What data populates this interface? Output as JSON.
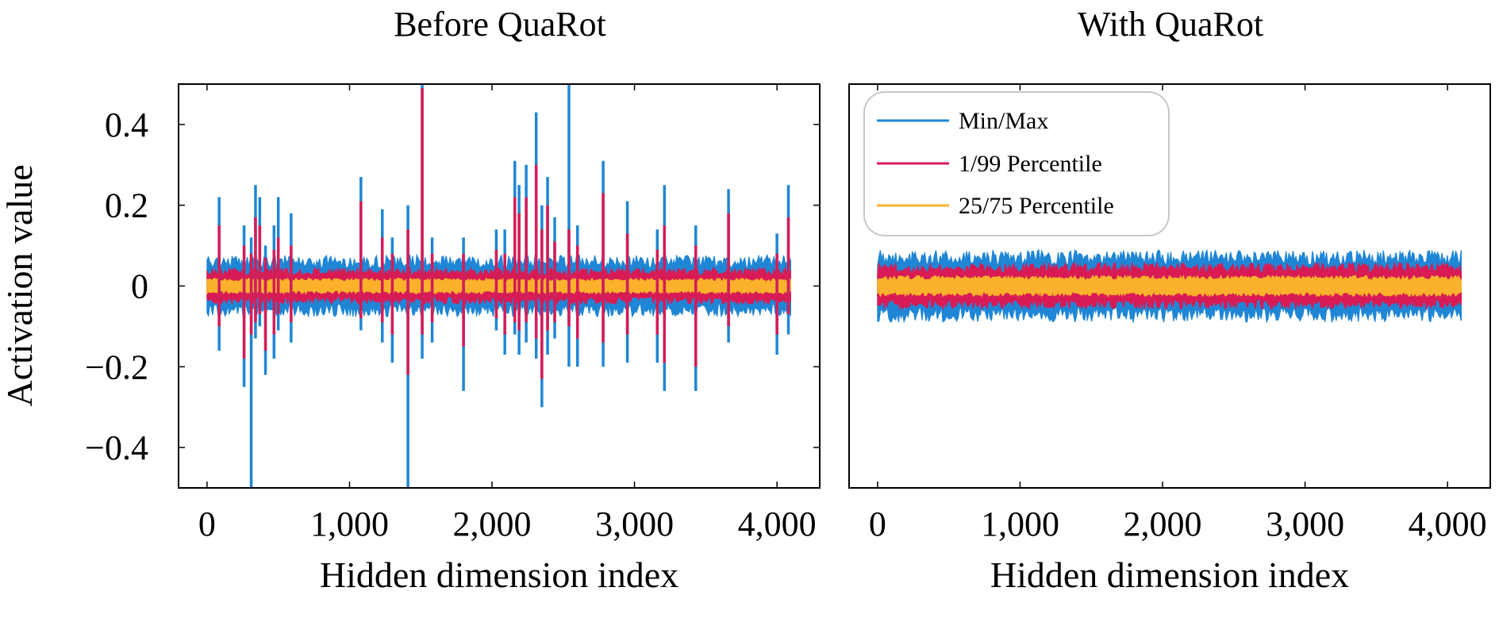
{
  "chart_data": [
    {
      "type": "line",
      "title": "Before QuaRot",
      "xlabel": "Hidden dimension index",
      "ylabel": "Activation value",
      "xlim": [
        -200,
        4300
      ],
      "ylim": [
        -0.5,
        0.5
      ],
      "xticks": [
        0,
        1000,
        2000,
        3000,
        4000
      ],
      "xtick_labels": [
        "0",
        "1,000",
        "2,000",
        "3,000",
        "4,000"
      ],
      "yticks": [
        -0.4,
        -0.2,
        0,
        0.2,
        0.4
      ],
      "ytick_labels": [
        "−0.4",
        "−0.2",
        "0",
        "0.2",
        "0.4"
      ],
      "x_range": [
        0,
        4096
      ],
      "series": [
        {
          "name": "Min/Max",
          "color": "#1f86d6",
          "band": [
            -0.06,
            0.06
          ]
        },
        {
          "name": "1/99 Percentile",
          "color": "#d81b55",
          "band": [
            -0.035,
            0.035
          ]
        },
        {
          "name": "25/75 Percentile",
          "color": "#fbb12b",
          "band": [
            -0.015,
            0.015
          ]
        }
      ],
      "outliers": [
        {
          "x": 85,
          "max": 0.22,
          "min": -0.16,
          "p99": 0.15,
          "p1": -0.1
        },
        {
          "x": 260,
          "max": 0.15,
          "min": -0.25,
          "p99": 0.1,
          "p1": -0.18
        },
        {
          "x": 310,
          "max": 0.12,
          "min": -0.5,
          "p99": 0.08,
          "p1": -0.12
        },
        {
          "x": 340,
          "max": 0.25,
          "min": -0.13,
          "p99": 0.17,
          "p1": -0.09
        },
        {
          "x": 370,
          "max": 0.22,
          "min": -0.1,
          "p99": 0.15,
          "p1": -0.07
        },
        {
          "x": 410,
          "max": 0.1,
          "min": -0.22,
          "p99": 0.07,
          "p1": -0.16
        },
        {
          "x": 470,
          "max": 0.15,
          "min": -0.18,
          "p99": 0.09,
          "p1": -0.12
        },
        {
          "x": 500,
          "max": 0.22,
          "min": -0.11,
          "p99": 0.12,
          "p1": -0.07
        },
        {
          "x": 590,
          "max": 0.18,
          "min": -0.14,
          "p99": 0.1,
          "p1": -0.09
        },
        {
          "x": 1080,
          "max": 0.27,
          "min": -0.11,
          "p99": 0.21,
          "p1": -0.08
        },
        {
          "x": 1230,
          "max": 0.19,
          "min": -0.14,
          "p99": 0.12,
          "p1": -0.09
        },
        {
          "x": 1300,
          "max": 0.12,
          "min": -0.19,
          "p99": 0.08,
          "p1": -0.12
        },
        {
          "x": 1410,
          "max": 0.2,
          "min": -0.5,
          "p99": 0.14,
          "p1": -0.22
        },
        {
          "x": 1510,
          "max": 0.5,
          "min": -0.18,
          "p99": 0.49,
          "p1": -0.12
        },
        {
          "x": 1580,
          "max": 0.12,
          "min": -0.14,
          "p99": 0.08,
          "p1": -0.09
        },
        {
          "x": 1800,
          "max": 0.12,
          "min": -0.26,
          "p99": 0.08,
          "p1": -0.15
        },
        {
          "x": 2030,
          "max": 0.14,
          "min": -0.11,
          "p99": 0.09,
          "p1": -0.08
        },
        {
          "x": 2090,
          "max": 0.14,
          "min": -0.17,
          "p99": 0.08,
          "p1": -0.12
        },
        {
          "x": 2160,
          "max": 0.31,
          "min": -0.12,
          "p99": 0.22,
          "p1": -0.09
        },
        {
          "x": 2190,
          "max": 0.25,
          "min": -0.17,
          "p99": 0.18,
          "p1": -0.11
        },
        {
          "x": 2240,
          "max": 0.3,
          "min": -0.14,
          "p99": 0.22,
          "p1": -0.09
        },
        {
          "x": 2310,
          "max": 0.43,
          "min": -0.18,
          "p99": 0.3,
          "p1": -0.13
        },
        {
          "x": 2350,
          "max": 0.2,
          "min": -0.3,
          "p99": 0.14,
          "p1": -0.23
        },
        {
          "x": 2390,
          "max": 0.27,
          "min": -0.17,
          "p99": 0.2,
          "p1": -0.11
        },
        {
          "x": 2440,
          "max": 0.17,
          "min": -0.13,
          "p99": 0.11,
          "p1": -0.09
        },
        {
          "x": 2540,
          "max": 0.5,
          "min": -0.2,
          "p99": 0.14,
          "p1": -0.1
        },
        {
          "x": 2600,
          "max": 0.15,
          "min": -0.2,
          "p99": 0.1,
          "p1": -0.13
        },
        {
          "x": 2780,
          "max": 0.31,
          "min": -0.2,
          "p99": 0.23,
          "p1": -0.14
        },
        {
          "x": 2950,
          "max": 0.21,
          "min": -0.19,
          "p99": 0.13,
          "p1": -0.12
        },
        {
          "x": 3160,
          "max": 0.14,
          "min": -0.19,
          "p99": 0.09,
          "p1": -0.12
        },
        {
          "x": 3210,
          "max": 0.25,
          "min": -0.26,
          "p99": 0.15,
          "p1": -0.19
        },
        {
          "x": 3430,
          "max": 0.15,
          "min": -0.26,
          "p99": 0.1,
          "p1": -0.2
        },
        {
          "x": 3660,
          "max": 0.24,
          "min": -0.14,
          "p99": 0.18,
          "p1": -0.1
        },
        {
          "x": 4000,
          "max": 0.13,
          "min": -0.17,
          "p99": 0.08,
          "p1": -0.12
        },
        {
          "x": 4080,
          "max": 0.25,
          "min": -0.12,
          "p99": 0.17,
          "p1": -0.07
        }
      ]
    },
    {
      "type": "line",
      "title": "With QuaRot",
      "xlabel": "Hidden dimension index",
      "ylabel": "",
      "xlim": [
        -200,
        4300
      ],
      "ylim": [
        -0.5,
        0.5
      ],
      "xticks": [
        0,
        1000,
        2000,
        3000,
        4000
      ],
      "xtick_labels": [
        "0",
        "1,000",
        "2,000",
        "3,000",
        "4,000"
      ],
      "yticks": [],
      "ytick_labels": [],
      "x_range": [
        0,
        4096
      ],
      "legend_position": "top-left",
      "series": [
        {
          "name": "Min/Max",
          "color": "#1f86d6",
          "band": [
            -0.07,
            0.07
          ]
        },
        {
          "name": "1/99 Percentile",
          "color": "#d81b55",
          "band": [
            -0.045,
            0.045
          ]
        },
        {
          "name": "25/75 Percentile",
          "color": "#fbb12b",
          "band": [
            -0.02,
            0.02
          ]
        }
      ],
      "outliers": []
    }
  ]
}
